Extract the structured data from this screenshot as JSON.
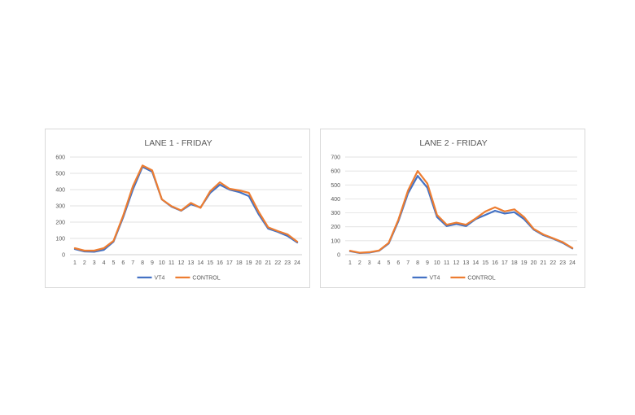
{
  "chart_data": [
    {
      "type": "line",
      "title": "LANE 1 - FRIDAY",
      "xlabel": "",
      "ylabel": "",
      "categories": [
        "1",
        "2",
        "3",
        "4",
        "5",
        "6",
        "7",
        "8",
        "9",
        "10",
        "11",
        "12",
        "13",
        "14",
        "15",
        "16",
        "17",
        "18",
        "19",
        "20",
        "21",
        "22",
        "23",
        "24"
      ],
      "ylim": [
        0,
        600
      ],
      "yticks": [
        0,
        100,
        200,
        300,
        400,
        500,
        600
      ],
      "grid": true,
      "legend_position": "bottom",
      "series": [
        {
          "name": "VT4",
          "color": "#4472C4",
          "values": [
            35,
            20,
            18,
            30,
            80,
            230,
            400,
            540,
            510,
            340,
            295,
            270,
            310,
            290,
            380,
            430,
            400,
            385,
            360,
            250,
            160,
            140,
            115,
            75
          ]
        },
        {
          "name": "CONTROL",
          "color": "#ED7D31",
          "values": [
            40,
            25,
            25,
            40,
            85,
            240,
            420,
            548,
            518,
            340,
            298,
            272,
            318,
            288,
            390,
            445,
            405,
            395,
            380,
            265,
            168,
            145,
            125,
            80
          ]
        }
      ]
    },
    {
      "type": "line",
      "title": "LANE 2 - FRIDAY",
      "xlabel": "",
      "ylabel": "",
      "categories": [
        "1",
        "2",
        "3",
        "4",
        "5",
        "6",
        "7",
        "8",
        "9",
        "10",
        "11",
        "12",
        "13",
        "14",
        "15",
        "16",
        "17",
        "18",
        "19",
        "20",
        "21",
        "22",
        "23",
        "24"
      ],
      "ylim": [
        0,
        700
      ],
      "yticks": [
        0,
        100,
        200,
        300,
        400,
        500,
        600,
        700
      ],
      "grid": true,
      "legend_position": "bottom",
      "series": [
        {
          "name": "VT4",
          "color": "#4472C4",
          "values": [
            25,
            12,
            15,
            28,
            80,
            240,
            440,
            565,
            480,
            270,
            205,
            220,
            205,
            255,
            285,
            315,
            295,
            305,
            255,
            180,
            140,
            115,
            85,
            45
          ]
        },
        {
          "name": "CONTROL",
          "color": "#ED7D31",
          "values": [
            28,
            14,
            18,
            30,
            85,
            250,
            460,
            600,
            510,
            285,
            215,
            230,
            215,
            260,
            310,
            340,
            310,
            325,
            270,
            185,
            145,
            118,
            90,
            48
          ]
        }
      ]
    }
  ]
}
